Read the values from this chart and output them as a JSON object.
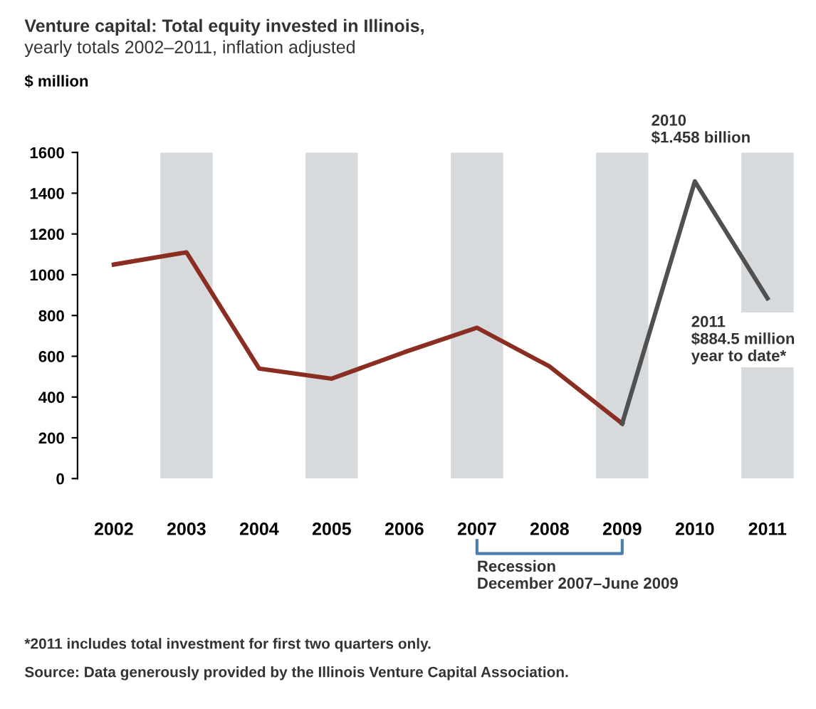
{
  "chart_data": {
    "type": "line",
    "title": "Venture capital: Total equity invested in Illinois,",
    "subtitle": "yearly totals 2002–2011, inflation adjusted",
    "ylabel": "$ million",
    "categories": [
      "2002",
      "2003",
      "2004",
      "2005",
      "2006",
      "2007",
      "2008",
      "2009",
      "2010",
      "2011"
    ],
    "series": [
      {
        "color": "#8b2e22",
        "values": [
          1050,
          1110,
          540,
          490,
          620,
          740,
          550,
          270,
          null,
          null
        ]
      },
      {
        "color": "#505050",
        "values": [
          null,
          null,
          null,
          null,
          null,
          null,
          null,
          270,
          1458,
          884.5
        ]
      }
    ],
    "ylim": [
      0,
      1600
    ],
    "yticks": [
      0,
      200,
      400,
      600,
      800,
      1000,
      1200,
      1400,
      1600
    ],
    "bands": [
      {
        "axis": "x",
        "from": "2003",
        "to": "2003",
        "color": "#d6dadd"
      },
      {
        "axis": "x",
        "from": "2005",
        "to": "2005",
        "color": "#d6dadd"
      },
      {
        "axis": "x",
        "from": "2007",
        "to": "2007",
        "color": "#d6dadd"
      },
      {
        "axis": "x",
        "from": "2009",
        "to": "2009",
        "color": "#d6dadd"
      },
      {
        "axis": "x",
        "from": "2011",
        "to": "2011",
        "color": "#d6dadd"
      }
    ],
    "annotations": [
      "2010\n$1.458 billion",
      "2011\n$884.5 million\nyear to date*",
      "Recession\nDecember 2007–June 2009",
      "*2011 includes total investment for first two quarters only.",
      "Source: Data generously provided by the Illinois Venture Capital Association."
    ],
    "grid": false,
    "legend": false,
    "marker": "none",
    "line_style": "solid"
  }
}
